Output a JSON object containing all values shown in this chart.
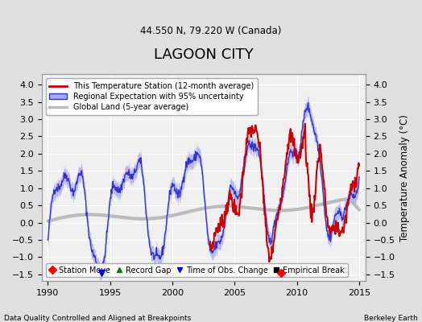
{
  "title": "LAGOON CITY",
  "subtitle": "44.550 N, 79.220 W (Canada)",
  "ylabel": "Temperature Anomaly (°C)",
  "xlabel_left": "Data Quality Controlled and Aligned at Breakpoints",
  "xlabel_right": "Berkeley Earth",
  "xlim": [
    1989.5,
    2015.5
  ],
  "ylim": [
    -1.7,
    4.3
  ],
  "yticks": [
    -1.5,
    -1.0,
    -0.5,
    0.0,
    0.5,
    1.0,
    1.5,
    2.0,
    2.5,
    3.0,
    3.5,
    4.0
  ],
  "xticks": [
    1990,
    1995,
    2000,
    2005,
    2010,
    2015
  ],
  "bg_color": "#e0e0e0",
  "plot_bg_color": "#f0f0f0",
  "regional_color": "#3333cc",
  "regional_fill": "#aaaaee",
  "station_color": "#cc0000",
  "global_color": "#bbbbbb",
  "legend_entries": [
    "This Temperature Station (12-month average)",
    "Regional Expectation with 95% uncertainty",
    "Global Land (5-year average)"
  ],
  "bottom_legend": [
    "Station Move",
    "Record Gap",
    "Time of Obs. Change",
    "Empirical Break"
  ],
  "obs_change_x": 1994.3,
  "obs_change_y": -1.45,
  "station_move_x": 2008.7,
  "station_move_y": -1.45
}
